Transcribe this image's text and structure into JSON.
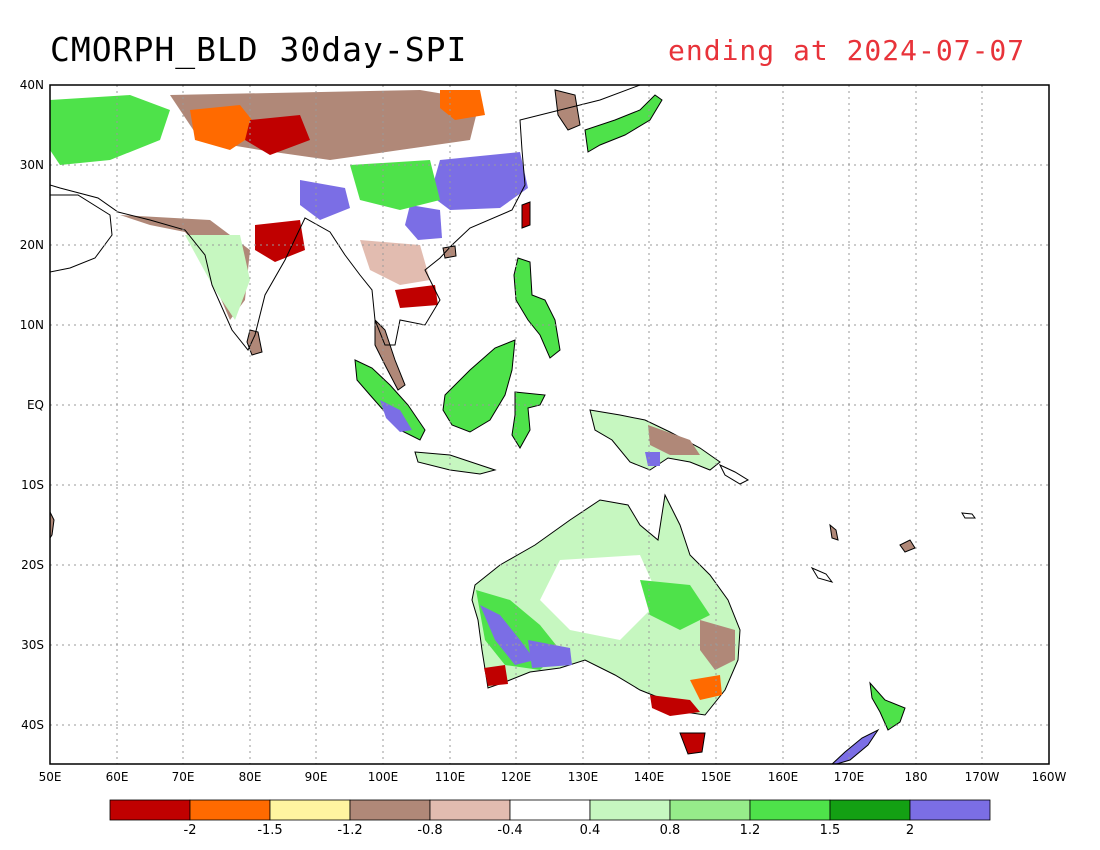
{
  "title": "CMORPH_BLD 30day-SPI",
  "subtitle": "ending at 2024-07-07",
  "map": {
    "projection": "latlon",
    "lon_range": [
      50,
      200
    ],
    "lat_range": [
      -45,
      40
    ],
    "grid": "dotted",
    "lat_labels": [
      "40N",
      "30N",
      "20N",
      "10N",
      "EQ",
      "10S",
      "20S",
      "30S",
      "40S"
    ],
    "lon_labels": [
      "50E",
      "60E",
      "70E",
      "80E",
      "90E",
      "100E",
      "110E",
      "120E",
      "130E",
      "140E",
      "150E",
      "160E",
      "170E",
      "180",
      "170W",
      "160W"
    ]
  },
  "legend": {
    "colors": [
      "#c00000",
      "#ff6a00",
      "#fff5a0",
      "#b08878",
      "#e2bcb0",
      "#ffffff",
      "#c6f7c0",
      "#96ec8a",
      "#4ee24a",
      "#13a013",
      "#7b6ee5"
    ],
    "tick_labels": [
      "-2",
      "-1.5",
      "-1.2",
      "-0.8",
      "-0.4",
      "0.4",
      "0.8",
      "1.2",
      "1.5",
      "2"
    ]
  },
  "colors": {
    "title_accent": "#e8333a",
    "coastline": "#000000"
  }
}
